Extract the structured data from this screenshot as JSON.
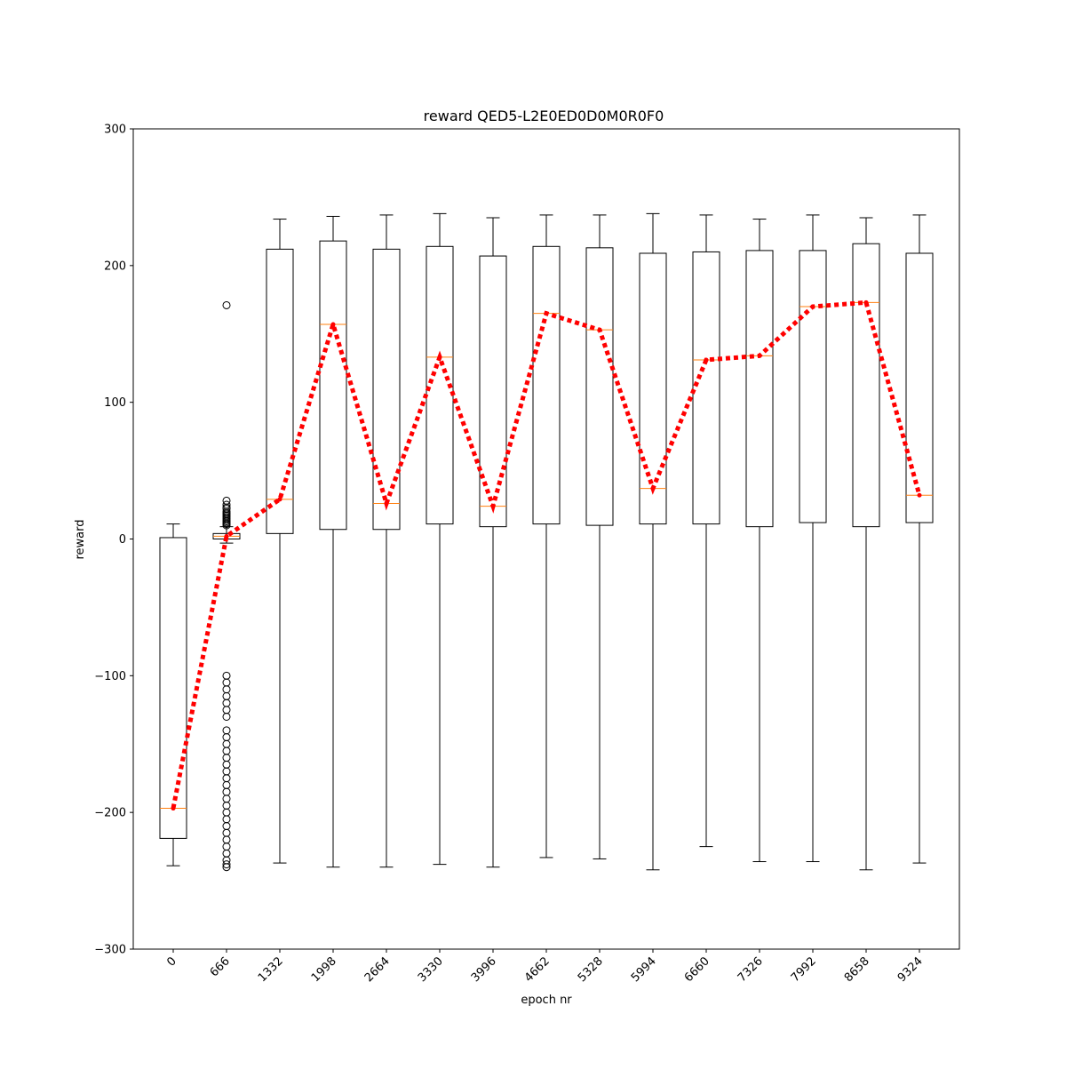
{
  "chart_data": {
    "type": "box",
    "title": "reward QED5-L2E0ED0D0M0R0F0",
    "xlabel": "epoch nr",
    "ylabel": "reward",
    "ylim": [
      -300,
      300
    ],
    "yticks": [
      -300,
      -200,
      -100,
      0,
      100,
      200,
      300
    ],
    "yticklabels": [
      "−300",
      "−200",
      "−100",
      "0",
      "100",
      "200",
      "300"
    ],
    "categories": [
      "0",
      "666",
      "1332",
      "1998",
      "2664",
      "3330",
      "3996",
      "4662",
      "5328",
      "5994",
      "6660",
      "7326",
      "7992",
      "8658",
      "9324"
    ],
    "boxes": [
      {
        "whisker_low": -239,
        "q1": -219,
        "median": -197,
        "q3": 1,
        "whisker_high": 11
      },
      {
        "whisker_low": -3,
        "q1": 0,
        "median": 2,
        "q3": 4,
        "whisker_high": 9
      },
      {
        "whisker_low": -237,
        "q1": 4,
        "median": 29,
        "q3": 212,
        "whisker_high": 234
      },
      {
        "whisker_low": -240,
        "q1": 7,
        "median": 157,
        "q3": 218,
        "whisker_high": 236
      },
      {
        "whisker_low": -240,
        "q1": 7,
        "median": 26,
        "q3": 212,
        "whisker_high": 237
      },
      {
        "whisker_low": -238,
        "q1": 11,
        "median": 133,
        "q3": 214,
        "whisker_high": 238
      },
      {
        "whisker_low": -240,
        "q1": 9,
        "median": 24,
        "q3": 207,
        "whisker_high": 235
      },
      {
        "whisker_low": -233,
        "q1": 11,
        "median": 165,
        "q3": 214,
        "whisker_high": 237
      },
      {
        "whisker_low": -234,
        "q1": 10,
        "median": 153,
        "q3": 213,
        "whisker_high": 237
      },
      {
        "whisker_low": -242,
        "q1": 11,
        "median": 37,
        "q3": 209,
        "whisker_high": 238
      },
      {
        "whisker_low": -225,
        "q1": 11,
        "median": 131,
        "q3": 210,
        "whisker_high": 237
      },
      {
        "whisker_low": -236,
        "q1": 9,
        "median": 134,
        "q3": 211,
        "whisker_high": 234
      },
      {
        "whisker_low": -236,
        "q1": 12,
        "median": 170,
        "q3": 211,
        "whisker_high": 237
      },
      {
        "whisker_low": -242,
        "q1": 9,
        "median": 173,
        "q3": 216,
        "whisker_high": 235
      },
      {
        "whisker_low": -237,
        "q1": 12,
        "median": 32,
        "q3": 209,
        "whisker_high": 237
      }
    ],
    "outliers": [
      {
        "category": "666",
        "values": [
          171,
          28,
          25,
          23,
          22,
          20,
          19,
          18,
          17,
          16,
          15,
          14,
          13,
          12,
          11,
          10,
          -100,
          -105,
          -110,
          -115,
          -120,
          -125,
          -130,
          -140,
          -145,
          -150,
          -155,
          -160,
          -165,
          -170,
          -175,
          -180,
          -185,
          -190,
          -195,
          -200,
          -205,
          -210,
          -215,
          -220,
          -225,
          -230,
          -235,
          -238,
          -240
        ]
      }
    ],
    "series": [
      {
        "type": "line",
        "style": "dotted",
        "values": [
          -197,
          2,
          29,
          157,
          26,
          133,
          24,
          165,
          153,
          37,
          131,
          134,
          170,
          173,
          32
        ]
      }
    ],
    "colors": {
      "box": "#000000",
      "median": "#ff7f0e",
      "trend": "#ff0000",
      "outlier": "#000000"
    },
    "grid": false,
    "legend": "none"
  }
}
